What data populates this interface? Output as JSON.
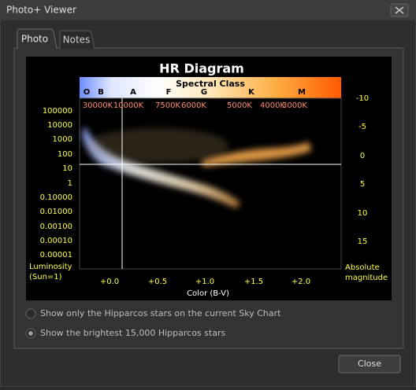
{
  "window": {
    "title": "Photo+ Viewer"
  },
  "tabs": [
    "Photo",
    "Notes"
  ],
  "hr_diagram": {
    "title": "HR Diagram",
    "spectral_class_label": "Spectral Class",
    "spectral_classes": [
      "O",
      "B",
      "A",
      "F",
      "G",
      "K",
      "M"
    ],
    "temperatures": [
      "30000K",
      "10000K",
      "7500K",
      "6000K",
      "5000K",
      "4000K",
      "3000K"
    ],
    "luminosity_ticks": [
      "100000",
      "10000",
      "1000",
      "100",
      "10",
      "1",
      "0.10000",
      "0.01000",
      "0.00100",
      "0.00010",
      "0.00001"
    ],
    "magnitude_ticks": [
      "-10",
      "-5",
      "0",
      "5",
      "10",
      "15"
    ],
    "color_ticks": [
      "+0.0",
      "+0.5",
      "+1.0",
      "+1.5",
      "+2.0"
    ],
    "y_label": [
      "Luminosity",
      "(Sun=1)"
    ],
    "y2_label": [
      "Absolute",
      "magnitude"
    ],
    "x_label": "Color (B-V)"
  },
  "options": [
    {
      "label": "Show only the Hipparcos stars on the current Sky Chart",
      "selected": false
    },
    {
      "label": "Show the brightest 15,000 Hipparcos stars",
      "selected": true
    }
  ],
  "close_button": "Close"
}
